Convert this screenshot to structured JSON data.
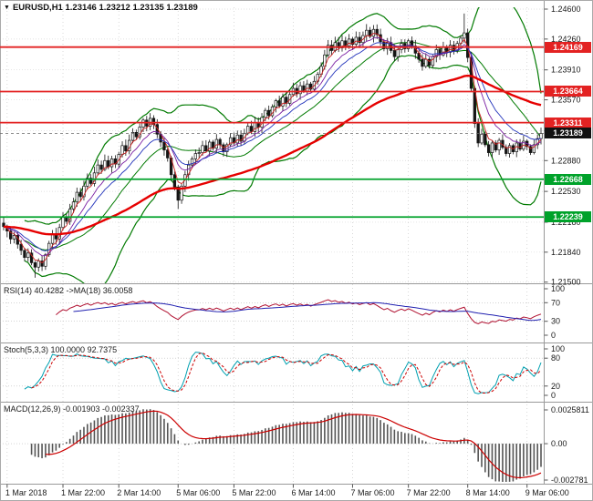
{
  "title": {
    "marker": "▼",
    "symbol_period": "EURUSD,H1",
    "quote": "1.23146 1.23212 1.23135 1.23189"
  },
  "panels": {
    "rsi": {
      "label": "RSI(14) 40.4282 ->MA(18) 36.0058",
      "ticks": [
        {
          "value": 100,
          "text": "100"
        },
        {
          "value": 70,
          "text": "70"
        },
        {
          "value": 30,
          "text": "30"
        },
        {
          "value": 0,
          "text": "0"
        }
      ],
      "dotted_levels": [
        70,
        30
      ]
    },
    "stoch": {
      "label": "Stoch(5,3,3) 100.0000 92.7375",
      "ticks": [
        {
          "value": 100,
          "text": "100"
        },
        {
          "value": 80,
          "text": "80"
        },
        {
          "value": 20,
          "text": "20"
        },
        {
          "value": 0,
          "text": "0"
        }
      ],
      "dotted_levels": [
        80,
        20
      ]
    },
    "macd": {
      "label": "MACD(12,26,9) -0.001903 -0.002337",
      "ticks": [
        {
          "value": 0.002581,
          "text": "0.0025811"
        },
        {
          "value": 0,
          "text": "0.00"
        },
        {
          "value": -0.002781,
          "text": "-0.002781"
        }
      ]
    }
  },
  "axis": {
    "price_ticks": [
      {
        "value": 1.246,
        "text": "1.24600"
      },
      {
        "value": 1.2426,
        "text": "1.24260"
      },
      {
        "value": 1.2391,
        "text": "1.23910"
      },
      {
        "value": 1.2357,
        "text": "1.23570"
      },
      {
        "value": 1.2322,
        "text": "1.23220"
      },
      {
        "value": 1.2288,
        "text": "1.22880"
      },
      {
        "value": 1.2253,
        "text": "1.22530"
      },
      {
        "value": 1.2218,
        "text": "1.22180"
      },
      {
        "value": 1.2184,
        "text": "1.21840"
      },
      {
        "value": 1.215,
        "text": "1.21500"
      }
    ],
    "time_labels": [
      {
        "bar": 1,
        "text": "1 Mar 2018"
      },
      {
        "bar": 17,
        "text": "1 Mar 22:00"
      },
      {
        "bar": 33,
        "text": "2 Mar 14:00"
      },
      {
        "bar": 50,
        "text": "5 Mar 06:00"
      },
      {
        "bar": 66,
        "text": "5 Mar 22:00"
      },
      {
        "bar": 83,
        "text": "6 Mar 14:00"
      },
      {
        "bar": 100,
        "text": "7 Mar 06:00"
      },
      {
        "bar": 116,
        "text": "7 Mar 22:00"
      },
      {
        "bar": 133,
        "text": "8 Mar 14:00"
      },
      {
        "bar": 150,
        "text": "9 Mar 06:00"
      }
    ]
  },
  "levels": [
    {
      "price": 1.24169,
      "label": "1.24169",
      "color": "#e32222",
      "kind": "resistance"
    },
    {
      "price": 1.23664,
      "label": "1.23664",
      "color": "#e32222",
      "kind": "resistance"
    },
    {
      "price": 1.23311,
      "label": "1.23311",
      "color": "#e32222",
      "kind": "resistance"
    },
    {
      "price": 1.23189,
      "label": "1.23189",
      "color": "#111111",
      "kind": "current-price"
    },
    {
      "price": 1.22668,
      "label": "1.22668",
      "color": "#00a22a",
      "kind": "support"
    },
    {
      "price": 1.22239,
      "label": "1.22239",
      "color": "#00a22a",
      "kind": "support"
    }
  ],
  "colors": {
    "bg": "#ffffff",
    "text": "#1a1a1a",
    "grid": "#d8d8d8",
    "grid_v": "#c9c9c9",
    "panel_border": "#999999",
    "bull": "#ffffff",
    "bear": "#151515",
    "candle_border": "#151515",
    "bollinger": "#007a00",
    "ma_slow": "#e60000",
    "ma_fast1": "#cc2222",
    "ma_fast2": "#7a1fa2",
    "ma_fast3": "#2233bb",
    "rsi": "#b01030",
    "rsi_ma": "#2020b0",
    "stoch_k": "#00a0b0",
    "stoch_d": "#cc0000",
    "macd_hist": "#555555",
    "macd_signal": "#cc0000"
  },
  "chart_data": {
    "type": "candlestick",
    "symbol": "EURUSD",
    "timeframe": "H1",
    "current_bar": {
      "open": 1.23146,
      "high": 1.23212,
      "low": 1.23135,
      "close": 1.23189
    },
    "current_price": 1.23189,
    "levels_resistance": [
      1.24169,
      1.23664,
      1.23311
    ],
    "levels_support": [
      1.22668,
      1.22239
    ],
    "closes": [
      1.2213,
      1.2208,
      1.2199,
      1.2203,
      1.2193,
      1.2186,
      1.2178,
      1.2183,
      1.2172,
      1.2167,
      1.2174,
      1.2168,
      1.2181,
      1.2194,
      1.2205,
      1.2199,
      1.2212,
      1.2224,
      1.2219,
      1.2233,
      1.2241,
      1.2252,
      1.2247,
      1.2259,
      1.2268,
      1.2262,
      1.2274,
      1.2283,
      1.2278,
      1.2288,
      1.2281,
      1.229,
      1.2284,
      1.2295,
      1.2305,
      1.2299,
      1.2311,
      1.232,
      1.2315,
      1.2326,
      1.2334,
      1.2327,
      1.2336,
      1.2329,
      1.2318,
      1.2309,
      1.23,
      1.2291,
      1.2272,
      1.2258,
      1.2243,
      1.2259,
      1.2272,
      1.2283,
      1.229,
      1.2296,
      1.2297,
      1.2305,
      1.2299,
      1.2309,
      1.2302,
      1.2312,
      1.2306,
      1.2298,
      1.2306,
      1.2314,
      1.2308,
      1.2317,
      1.231,
      1.2319,
      1.2327,
      1.2321,
      1.2331,
      1.2326,
      1.2337,
      1.2345,
      1.2339,
      1.2349,
      1.2356,
      1.235,
      1.236,
      1.2353,
      1.2363,
      1.237,
      1.2364,
      1.2373,
      1.2367,
      1.2375,
      1.2369,
      1.2378,
      1.2386,
      1.2395,
      1.2408,
      1.2419,
      1.2413,
      1.2422,
      1.2416,
      1.2424,
      1.2418,
      1.2426,
      1.242,
      1.2428,
      1.2422,
      1.243,
      1.2436,
      1.2429,
      1.2437,
      1.2431,
      1.2423,
      1.2415,
      1.2422,
      1.2413,
      1.2406,
      1.2414,
      1.2421,
      1.2415,
      1.2424,
      1.2418,
      1.241,
      1.2403,
      1.2395,
      1.2403,
      1.2396,
      1.2406,
      1.2414,
      1.2408,
      1.2417,
      1.2411,
      1.2419,
      1.2413,
      1.2421,
      1.2427,
      1.2433,
      1.2405,
      1.237,
      1.233,
      1.2308,
      1.2318,
      1.2306,
      1.2297,
      1.2308,
      1.23,
      1.2311,
      1.2303,
      1.2296,
      1.2305,
      1.2298,
      1.2308,
      1.2301,
      1.231,
      1.2304,
      1.2297,
      1.2306,
      1.2313,
      1.23189
    ],
    "spike_highs": {
      "104": 1.2443,
      "132": 1.2455
    },
    "spike_lows": {
      "9": 1.2155,
      "50": 1.2233
    },
    "indicators": {
      "rsi": {
        "period": 14,
        "value": 40.4282,
        "ma_period": 18,
        "ma_value": 36.0058
      },
      "stochastic": {
        "params": [
          5,
          3,
          3
        ],
        "k": 100.0,
        "d": 92.7375
      },
      "macd": {
        "params": [
          12,
          26,
          9
        ],
        "value": -0.001903,
        "signal": -0.002337
      }
    }
  }
}
